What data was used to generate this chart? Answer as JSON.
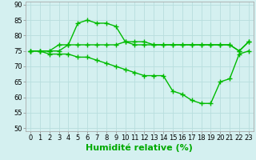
{
  "line1": [
    75,
    75,
    75,
    77,
    77,
    84,
    85,
    84,
    84,
    83,
    78,
    78,
    78,
    77,
    77,
    77,
    77,
    77,
    77,
    77,
    77,
    77,
    75,
    78
  ],
  "line2": [
    75,
    75,
    75,
    75,
    77,
    77,
    77,
    77,
    77,
    77,
    78,
    77,
    77,
    77,
    77,
    77,
    77,
    77,
    77,
    77,
    77,
    77,
    75,
    78
  ],
  "line3": [
    75,
    75,
    74,
    74,
    74,
    73,
    73,
    72,
    71,
    70,
    69,
    68,
    67,
    67,
    67,
    62,
    61,
    59,
    58,
    58,
    65,
    66,
    74,
    75
  ],
  "line_color": "#00bb00",
  "bg_color": "#d4f0f0",
  "grid_color": "#b8dede",
  "xlabel": "Humidité relative (%)",
  "xlabel_color": "#00aa00",
  "xlabel_fontsize": 8,
  "ylim": [
    49,
    91
  ],
  "xlim": [
    -0.5,
    23.5
  ],
  "yticks": [
    50,
    55,
    60,
    65,
    70,
    75,
    80,
    85,
    90
  ],
  "xticks": [
    0,
    1,
    2,
    3,
    4,
    5,
    6,
    7,
    8,
    9,
    10,
    11,
    12,
    13,
    14,
    15,
    16,
    17,
    18,
    19,
    20,
    21,
    22,
    23
  ],
  "tick_fontsize": 6,
  "marker": "+",
  "markersize": 4,
  "linewidth": 1.0
}
